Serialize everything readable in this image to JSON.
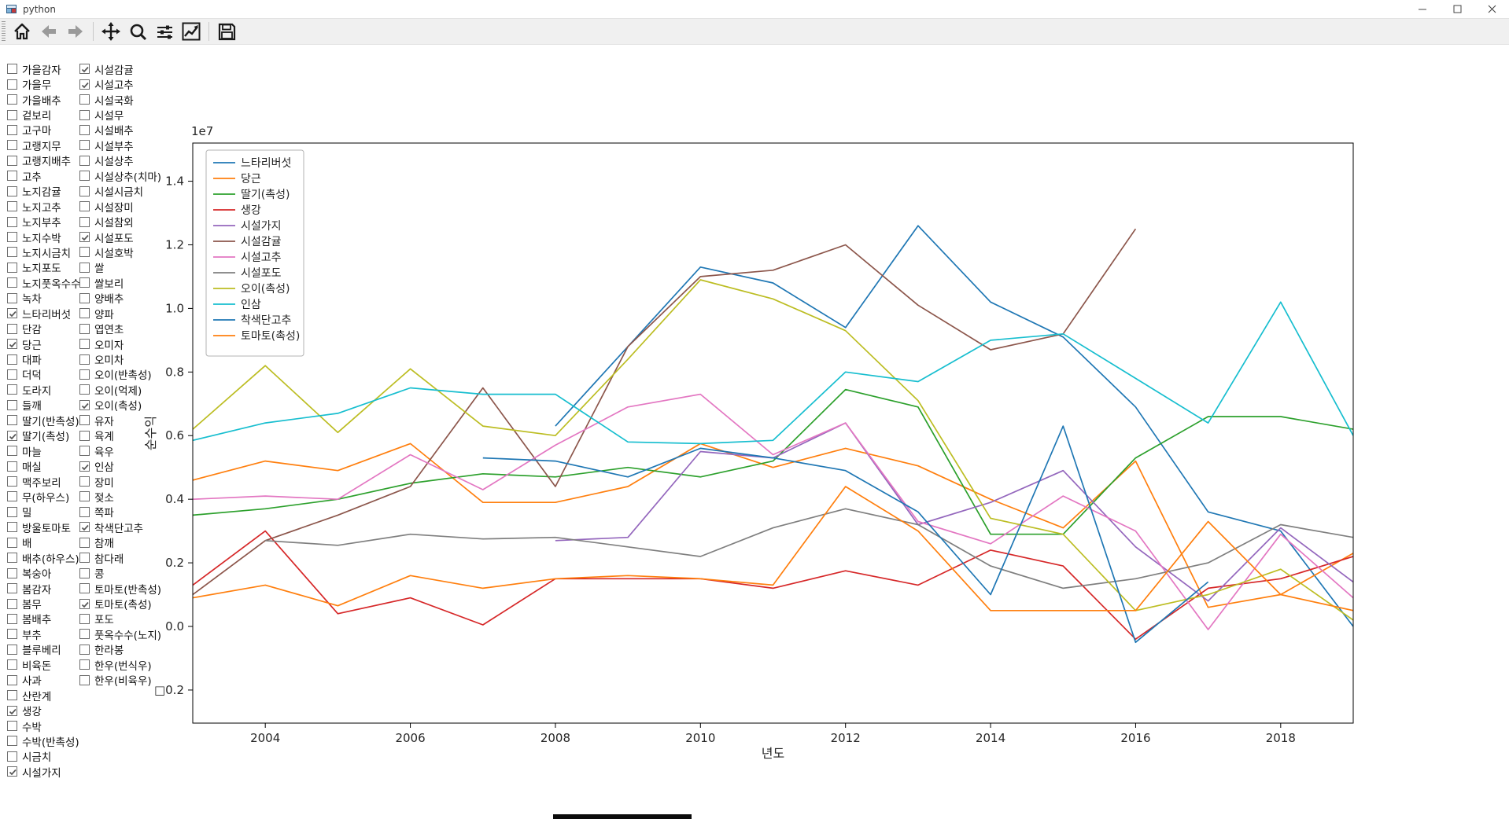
{
  "window": {
    "title": "python",
    "controls": {
      "minimize": "minimize",
      "maximize": "maximize",
      "close": "close"
    }
  },
  "toolbar": {
    "buttons": [
      "home",
      "back",
      "forward",
      "pan",
      "zoom-to-rect",
      "configure-subplots",
      "customize-plot",
      "save"
    ]
  },
  "crops": {
    "column1": [
      {
        "label": "가을감자",
        "checked": false
      },
      {
        "label": "가을무",
        "checked": false
      },
      {
        "label": "가을배추",
        "checked": false
      },
      {
        "label": "겉보리",
        "checked": false
      },
      {
        "label": "고구마",
        "checked": false
      },
      {
        "label": "고랭지무",
        "checked": false
      },
      {
        "label": "고랭지배추",
        "checked": false
      },
      {
        "label": "고추",
        "checked": false
      },
      {
        "label": "노지감귤",
        "checked": false
      },
      {
        "label": "노지고추",
        "checked": false
      },
      {
        "label": "노지부추",
        "checked": false
      },
      {
        "label": "노지수박",
        "checked": false
      },
      {
        "label": "노지시금치",
        "checked": false
      },
      {
        "label": "노지포도",
        "checked": false
      },
      {
        "label": "노지풋옥수수",
        "checked": false
      },
      {
        "label": "녹차",
        "checked": false
      },
      {
        "label": "느타리버섯",
        "checked": true
      },
      {
        "label": "단감",
        "checked": false
      },
      {
        "label": "당근",
        "checked": true
      },
      {
        "label": "대파",
        "checked": false
      },
      {
        "label": "더덕",
        "checked": false
      },
      {
        "label": "도라지",
        "checked": false
      },
      {
        "label": "들깨",
        "checked": false
      },
      {
        "label": "딸기(반촉성)",
        "checked": false
      },
      {
        "label": "딸기(촉성)",
        "checked": true
      },
      {
        "label": "마늘",
        "checked": false
      },
      {
        "label": "매실",
        "checked": false
      },
      {
        "label": "맥주보리",
        "checked": false
      },
      {
        "label": "무(하우스)",
        "checked": false
      },
      {
        "label": "밀",
        "checked": false
      },
      {
        "label": "방울토마토",
        "checked": false
      },
      {
        "label": "배",
        "checked": false
      },
      {
        "label": "배추(하우스)",
        "checked": false
      },
      {
        "label": "복숭아",
        "checked": false
      },
      {
        "label": "봄감자",
        "checked": false
      },
      {
        "label": "봄무",
        "checked": false
      },
      {
        "label": "봄배추",
        "checked": false
      },
      {
        "label": "부추",
        "checked": false
      },
      {
        "label": "블루베리",
        "checked": false
      },
      {
        "label": "비육돈",
        "checked": false
      },
      {
        "label": "사과",
        "checked": false
      },
      {
        "label": "산란계",
        "checked": false
      },
      {
        "label": "생강",
        "checked": true
      },
      {
        "label": "수박",
        "checked": false
      },
      {
        "label": "수박(반촉성)",
        "checked": false
      },
      {
        "label": "시금치",
        "checked": false
      },
      {
        "label": "시설가지",
        "checked": true
      }
    ],
    "column2": [
      {
        "label": "시설감귤",
        "checked": true
      },
      {
        "label": "시설고추",
        "checked": true
      },
      {
        "label": "시설국화",
        "checked": false
      },
      {
        "label": "시설무",
        "checked": false
      },
      {
        "label": "시설배추",
        "checked": false
      },
      {
        "label": "시설부추",
        "checked": false
      },
      {
        "label": "시설상추",
        "checked": false
      },
      {
        "label": "시설상추(치마)",
        "checked": false
      },
      {
        "label": "시설시금치",
        "checked": false
      },
      {
        "label": "시설장미",
        "checked": false
      },
      {
        "label": "시설참외",
        "checked": false
      },
      {
        "label": "시설포도",
        "checked": true
      },
      {
        "label": "시설호박",
        "checked": false
      },
      {
        "label": "쌀",
        "checked": false
      },
      {
        "label": "쌀보리",
        "checked": false
      },
      {
        "label": "양배추",
        "checked": false
      },
      {
        "label": "양파",
        "checked": false
      },
      {
        "label": "엽연초",
        "checked": false
      },
      {
        "label": "오미자",
        "checked": false
      },
      {
        "label": "오미차",
        "checked": false
      },
      {
        "label": "오이(반촉성)",
        "checked": false
      },
      {
        "label": "오이(억제)",
        "checked": false
      },
      {
        "label": "오이(촉성)",
        "checked": true
      },
      {
        "label": "유자",
        "checked": false
      },
      {
        "label": "육계",
        "checked": false
      },
      {
        "label": "육우",
        "checked": false
      },
      {
        "label": "인삼",
        "checked": true
      },
      {
        "label": "장미",
        "checked": false
      },
      {
        "label": "젖소",
        "checked": false
      },
      {
        "label": "쪽파",
        "checked": false
      },
      {
        "label": "착색단고추",
        "checked": true
      },
      {
        "label": "참깨",
        "checked": false
      },
      {
        "label": "참다래",
        "checked": false
      },
      {
        "label": "콩",
        "checked": false
      },
      {
        "label": "토마토(반촉성)",
        "checked": false
      },
      {
        "label": "토마토(촉성)",
        "checked": true
      },
      {
        "label": "포도",
        "checked": false
      },
      {
        "label": "풋옥수수(노지)",
        "checked": false
      },
      {
        "label": "한라봉",
        "checked": false
      },
      {
        "label": "한우(번식우)",
        "checked": false
      },
      {
        "label": "한우(비육우)",
        "checked": false
      }
    ]
  },
  "chart_data": {
    "type": "line",
    "title": "",
    "xlabel": "년도",
    "ylabel": "순수익",
    "offset_text": "1e7",
    "y_unit_multiplier": 10000000,
    "xlim": [
      2003,
      2019
    ],
    "ylim": [
      -0.304,
      1.52
    ],
    "xticks": [
      2004,
      2006,
      2008,
      2010,
      2012,
      2014,
      2016,
      2018
    ],
    "ytick_values": [
      1.4,
      1.2,
      1.0,
      0.8,
      0.6,
      0.4,
      0.2,
      0.0,
      -0.2
    ],
    "ytick_labels": [
      "1.4",
      "1.2",
      "1.0",
      "0.8",
      "0.6",
      "0.4",
      "0.2",
      "0.0",
      "□0.2"
    ],
    "grid": false,
    "legend_position": "upper left",
    "series": [
      {
        "name": "느타리버섯",
        "color": "#1f77b4",
        "years": [
          2008,
          2009,
          2010,
          2011,
          2012,
          2013,
          2014,
          2015,
          2016,
          2017,
          2018,
          2019
        ],
        "values": [
          0.63,
          0.88,
          1.13,
          1.08,
          0.94,
          1.26,
          1.02,
          0.91,
          0.69,
          0.36,
          0.3,
          0.0
        ]
      },
      {
        "name": "당근",
        "color": "#ff7f0e",
        "years": [
          2003,
          2004,
          2005,
          2006,
          2007,
          2008,
          2009,
          2010,
          2011,
          2012,
          2013,
          2014,
          2015,
          2016,
          2017,
          2018,
          2019
        ],
        "values": [
          0.46,
          0.52,
          0.49,
          0.575,
          0.39,
          0.39,
          0.44,
          0.575,
          0.5,
          0.56,
          0.505,
          0.4,
          0.31,
          0.52,
          0.06,
          0.1,
          0.23
        ]
      },
      {
        "name": "딸기(촉성)",
        "color": "#2ca02c",
        "years": [
          2003,
          2004,
          2005,
          2006,
          2007,
          2008,
          2009,
          2010,
          2011,
          2012,
          2013,
          2014,
          2015,
          2016,
          2017,
          2018,
          2019
        ],
        "values": [
          0.35,
          0.37,
          0.4,
          0.45,
          0.48,
          0.47,
          0.5,
          0.47,
          0.52,
          0.745,
          0.69,
          0.29,
          0.29,
          0.53,
          0.66,
          0.66,
          0.62
        ]
      },
      {
        "name": "생강",
        "color": "#d62728",
        "years": [
          2003,
          2004,
          2005,
          2006,
          2007,
          2008,
          2009,
          2010,
          2011,
          2012,
          2013,
          2014,
          2015,
          2016,
          2017,
          2018,
          2019
        ],
        "values": [
          0.13,
          0.3,
          0.04,
          0.09,
          0.005,
          0.15,
          0.15,
          0.15,
          0.12,
          0.175,
          0.13,
          0.24,
          0.19,
          -0.04,
          0.12,
          0.15,
          0.22
        ]
      },
      {
        "name": "시설가지",
        "color": "#9467bd",
        "years": [
          2008,
          2009,
          2010,
          2011,
          2012,
          2013,
          2014,
          2015,
          2016,
          2017,
          2018,
          2019
        ],
        "values": [
          0.27,
          0.28,
          0.55,
          0.53,
          0.64,
          0.32,
          0.39,
          0.49,
          0.25,
          0.08,
          0.31,
          0.14
        ]
      },
      {
        "name": "시설감귤",
        "color": "#8c564b",
        "years": [
          2003,
          2004,
          2005,
          2006,
          2007,
          2008,
          2009,
          2010,
          2011,
          2012,
          2013,
          2014,
          2015,
          2016
        ],
        "values": [
          0.1,
          0.27,
          0.35,
          0.44,
          0.75,
          0.44,
          0.88,
          1.1,
          1.12,
          1.2,
          1.01,
          0.87,
          0.92,
          1.25
        ]
      },
      {
        "name": "시설고추",
        "color": "#e377c2",
        "years": [
          2003,
          2004,
          2005,
          2006,
          2007,
          2008,
          2009,
          2010,
          2011,
          2012,
          2013,
          2014,
          2015,
          2016,
          2017,
          2018,
          2019
        ],
        "values": [
          0.4,
          0.41,
          0.4,
          0.54,
          0.43,
          0.57,
          0.69,
          0.73,
          0.54,
          0.64,
          0.33,
          0.26,
          0.41,
          0.3,
          -0.01,
          0.29,
          0.09
        ]
      },
      {
        "name": "시설포도",
        "color": "#7f7f7f",
        "years": [
          2004,
          2005,
          2006,
          2007,
          2008,
          2009,
          2010,
          2011,
          2012,
          2013,
          2014,
          2015,
          2016,
          2017,
          2018,
          2019
        ],
        "values": [
          0.27,
          0.255,
          0.29,
          0.275,
          0.28,
          0.25,
          0.22,
          0.31,
          0.37,
          0.32,
          0.19,
          0.12,
          0.15,
          0.2,
          0.32,
          0.28
        ]
      },
      {
        "name": "오이(촉성)",
        "color": "#bcbd22",
        "years": [
          2003,
          2004,
          2005,
          2006,
          2007,
          2008,
          2009,
          2010,
          2011,
          2012,
          2013,
          2014,
          2015,
          2016,
          2017,
          2018,
          2019
        ],
        "values": [
          0.62,
          0.82,
          0.61,
          0.81,
          0.63,
          0.6,
          0.84,
          1.09,
          1.03,
          0.93,
          0.71,
          0.34,
          0.29,
          0.05,
          0.1,
          0.18,
          0.02
        ]
      },
      {
        "name": "인삼",
        "color": "#17becf",
        "years": [
          2003,
          2004,
          2005,
          2006,
          2007,
          2008,
          2009,
          2010,
          2011,
          2012,
          2013,
          2014,
          2015,
          2016,
          2017,
          2018,
          2019
        ],
        "values": [
          0.585,
          0.64,
          0.67,
          0.75,
          0.73,
          0.73,
          0.58,
          0.575,
          0.585,
          0.8,
          0.77,
          0.9,
          0.92,
          0.78,
          0.64,
          1.02,
          0.6
        ]
      },
      {
        "name": "착색단고추",
        "color": "#1f77b4",
        "years": [
          2007,
          2008,
          2009,
          2010,
          2011,
          2012,
          2013,
          2014,
          2015,
          2016,
          2017
        ],
        "values": [
          0.53,
          0.52,
          0.47,
          0.56,
          0.53,
          0.49,
          0.36,
          0.1,
          0.63,
          -0.05,
          0.14
        ]
      },
      {
        "name": "토마토(촉성)",
        "color": "#ff7f0e",
        "years": [
          2003,
          2004,
          2005,
          2006,
          2007,
          2008,
          2009,
          2010,
          2011,
          2012,
          2013,
          2014,
          2015,
          2016,
          2017,
          2018,
          2019
        ],
        "values": [
          0.09,
          0.13,
          0.065,
          0.16,
          0.12,
          0.15,
          0.16,
          0.15,
          0.13,
          0.44,
          0.3,
          0.05,
          0.05,
          0.05,
          0.33,
          0.1,
          0.05
        ]
      }
    ]
  },
  "bottom_bar": {
    "color": "#0b0b0b"
  }
}
